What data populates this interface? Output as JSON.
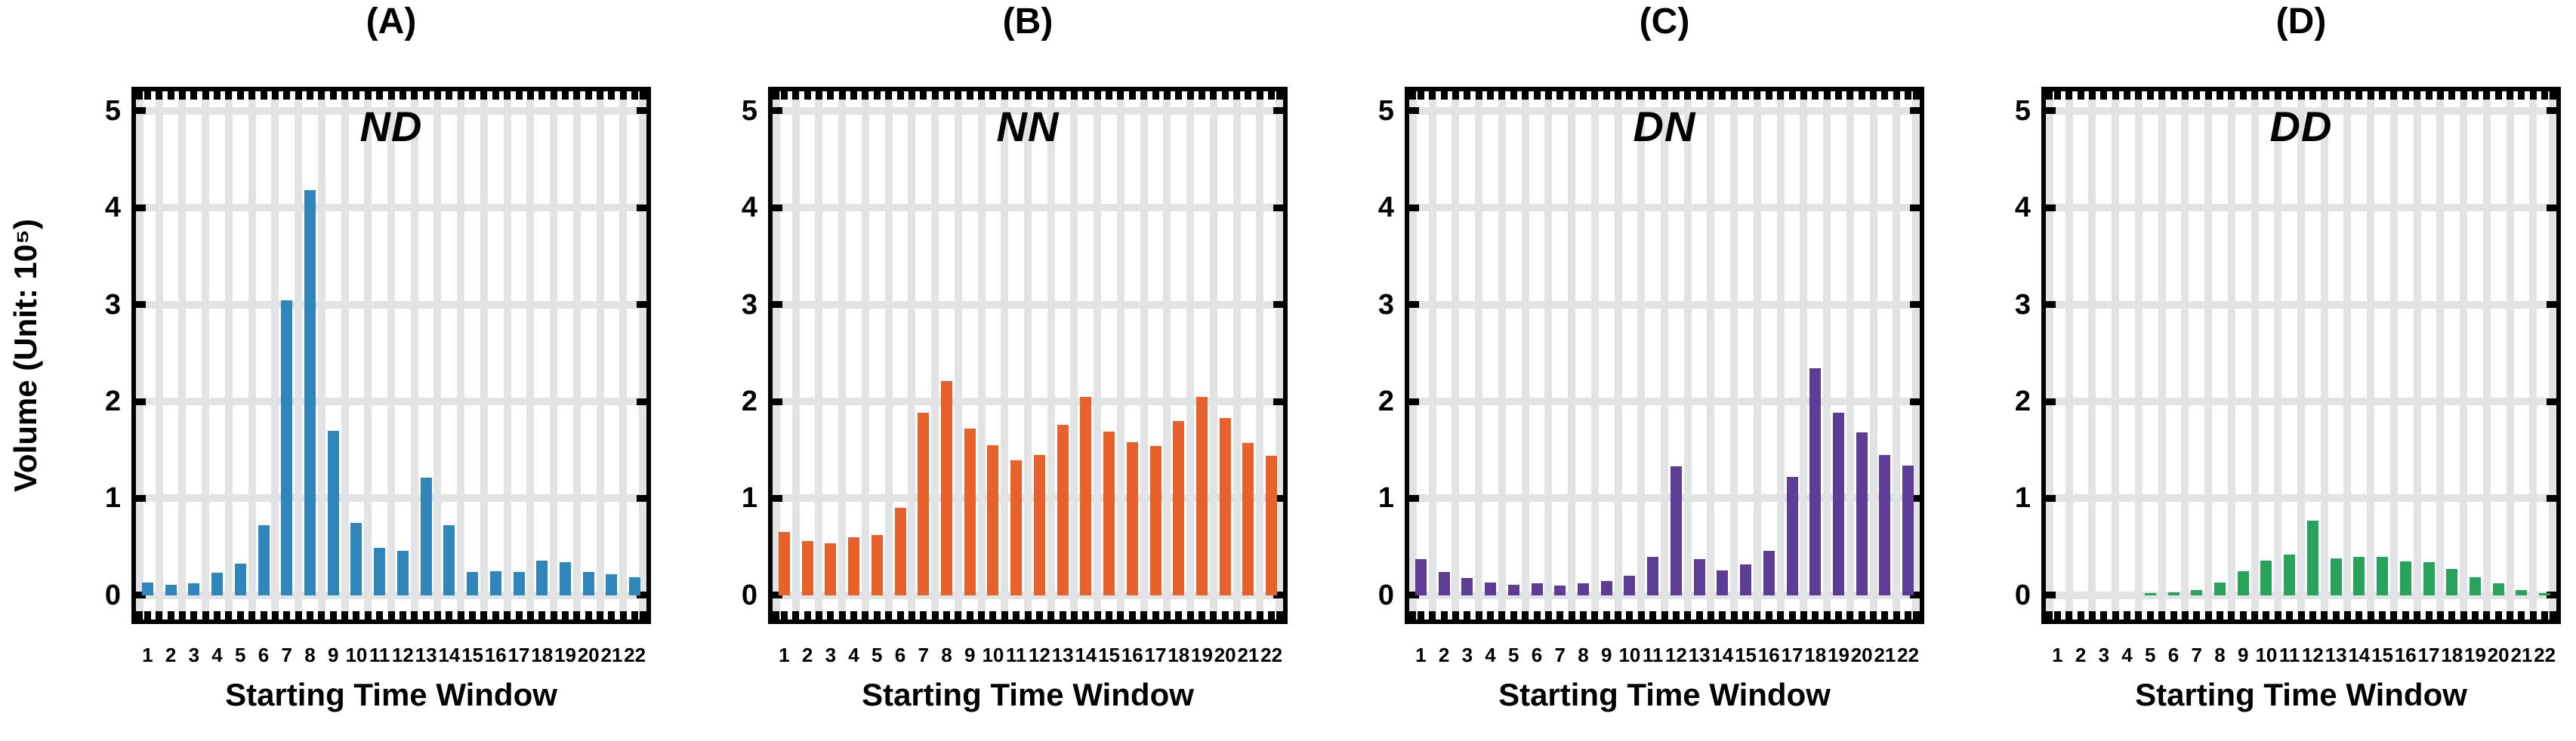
{
  "figure": {
    "ylabel": "Volume (Unit: 10⁵)"
  },
  "chart_data": [
    {
      "type": "bar",
      "title": "(A)",
      "panel_label": "ND",
      "color": "#2e86bb",
      "xlabel": "Starting Time Window",
      "ylabel": "Volume (Unit: 10⁵)",
      "categories": [
        "1",
        "2",
        "3",
        "4",
        "5",
        "6",
        "7",
        "8",
        "9",
        "10",
        "11",
        "12",
        "13",
        "14",
        "15",
        "16",
        "17",
        "18",
        "19",
        "20",
        "21",
        "22"
      ],
      "values": [
        0.13,
        0.11,
        0.12,
        0.23,
        0.33,
        0.72,
        3.04,
        4.18,
        1.7,
        0.75,
        0.49,
        0.46,
        1.21,
        0.72,
        0.24,
        0.25,
        0.24,
        0.36,
        0.34,
        0.24,
        0.22,
        0.19
      ],
      "yticks": [
        0,
        1,
        2,
        3,
        4,
        5
      ],
      "ylim": [
        -0.25,
        5.2
      ],
      "grid": "on",
      "legend": "none"
    },
    {
      "type": "bar",
      "title": "(B)",
      "panel_label": "NN",
      "color": "#e8612b",
      "xlabel": "Starting Time Window",
      "ylabel": "Volume (Unit: 10⁵)",
      "categories": [
        "1",
        "2",
        "3",
        "4",
        "5",
        "6",
        "7",
        "8",
        "9",
        "10",
        "11",
        "12",
        "13",
        "14",
        "15",
        "16",
        "17",
        "18",
        "19",
        "20",
        "21",
        "22"
      ],
      "values": [
        0.65,
        0.56,
        0.54,
        0.6,
        0.62,
        0.9,
        1.88,
        2.21,
        1.72,
        1.55,
        1.39,
        1.45,
        1.76,
        2.05,
        1.69,
        1.58,
        1.54,
        1.8,
        2.05,
        1.83,
        1.57,
        1.44
      ],
      "yticks": [
        0,
        1,
        2,
        3,
        4,
        5
      ],
      "ylim": [
        -0.25,
        5.2
      ],
      "grid": "on",
      "legend": "none"
    },
    {
      "type": "bar",
      "title": "(C)",
      "panel_label": "DN",
      "color": "#5c3d96",
      "xlabel": "Starting Time Window",
      "ylabel": "Volume (Unit: 10⁵)",
      "categories": [
        "1",
        "2",
        "3",
        "4",
        "5",
        "6",
        "7",
        "8",
        "9",
        "10",
        "11",
        "12",
        "13",
        "14",
        "15",
        "16",
        "17",
        "18",
        "19",
        "20",
        "21",
        "22"
      ],
      "values": [
        0.37,
        0.24,
        0.18,
        0.13,
        0.11,
        0.12,
        0.1,
        0.12,
        0.15,
        0.2,
        0.4,
        1.33,
        0.37,
        0.26,
        0.32,
        0.46,
        1.22,
        2.34,
        1.88,
        1.68,
        1.45,
        1.34
      ],
      "yticks": [
        0,
        1,
        2,
        3,
        4,
        5
      ],
      "ylim": [
        -0.25,
        5.2
      ],
      "grid": "on",
      "legend": "none"
    },
    {
      "type": "bar",
      "title": "(D)",
      "panel_label": "DD",
      "color": "#28a35c",
      "xlabel": "Starting Time Window",
      "ylabel": "Volume (Unit: 10⁵)",
      "categories": [
        "1",
        "2",
        "3",
        "4",
        "5",
        "6",
        "7",
        "8",
        "9",
        "10",
        "11",
        "12",
        "13",
        "14",
        "15",
        "16",
        "17",
        "18",
        "19",
        "20",
        "21",
        "22"
      ],
      "values": [
        0.0,
        0.0,
        0.0,
        0.0,
        0.02,
        0.03,
        0.05,
        0.13,
        0.25,
        0.36,
        0.42,
        0.77,
        0.38,
        0.4,
        0.4,
        0.35,
        0.34,
        0.27,
        0.19,
        0.12,
        0.05,
        0.02
      ],
      "yticks": [
        0,
        1,
        2,
        3,
        4,
        5
      ],
      "ylim": [
        -0.25,
        5.2
      ],
      "grid": "on",
      "legend": "none"
    }
  ]
}
